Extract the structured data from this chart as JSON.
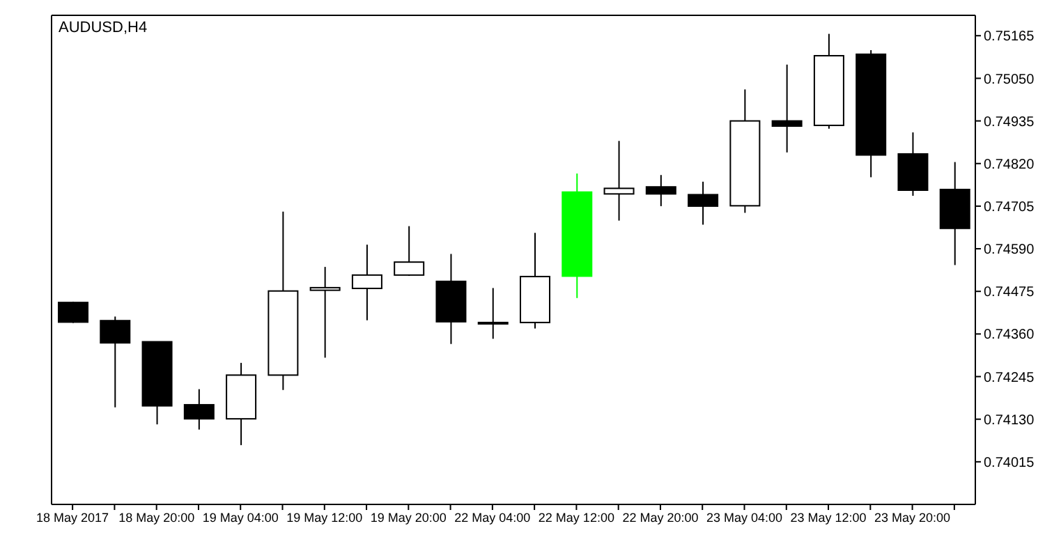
{
  "chart_data": {
    "type": "candlestick",
    "title": "AUDUSD,H4",
    "categories": [
      "18 May 2017",
      null,
      "18 May 20:00",
      null,
      "19 May 04:00",
      null,
      "19 May 12:00",
      null,
      "19 May 20:00",
      null,
      "22 May 04:00",
      null,
      "22 May 12:00",
      null,
      "22 May 20:00",
      null,
      "23 May 04:00",
      null,
      "23 May 12:00",
      null,
      "23 May 20:00",
      null
    ],
    "ohlc": [
      [
        0.74445,
        0.74447,
        0.7439,
        0.74392
      ],
      [
        0.74396,
        0.74407,
        0.74162,
        0.74336
      ],
      [
        0.74339,
        0.74339,
        0.74116,
        0.74166
      ],
      [
        0.74169,
        0.74211,
        0.74102,
        0.74131
      ],
      [
        0.74131,
        0.74282,
        0.7406,
        0.74249
      ],
      [
        0.74249,
        0.7469,
        0.74209,
        0.74476
      ],
      [
        0.74478,
        0.74541,
        0.74296,
        0.74485
      ],
      [
        0.74483,
        0.74601,
        0.74397,
        0.74519
      ],
      [
        0.74519,
        0.74651,
        0.74517,
        0.74554
      ],
      [
        0.74502,
        0.74576,
        0.74333,
        0.74393
      ],
      [
        0.74391,
        0.74484,
        0.74347,
        0.74391
      ],
      [
        0.74391,
        0.74633,
        0.74375,
        0.74515
      ],
      [
        0.74516,
        0.74793,
        0.74457,
        0.74743
      ],
      [
        0.74738,
        0.74881,
        0.74666,
        0.74753
      ],
      [
        0.74757,
        0.74789,
        0.74705,
        0.74738
      ],
      [
        0.74736,
        0.74771,
        0.74655,
        0.74705
      ],
      [
        0.74706,
        0.7502,
        0.74687,
        0.74935
      ],
      [
        0.74935,
        0.75087,
        0.7485,
        0.74921
      ],
      [
        0.74923,
        0.7517,
        0.74914,
        0.75111
      ],
      [
        0.75115,
        0.75126,
        0.74783,
        0.74843
      ],
      [
        0.74846,
        0.74904,
        0.74733,
        0.74748
      ],
      [
        0.7475,
        0.74824,
        0.74546,
        0.74645
      ]
    ],
    "colors": [
      "#000000",
      "#000000",
      "#000000",
      "#000000",
      "#ffffff",
      "#ffffff",
      "#ffffff",
      "#ffffff",
      "#ffffff",
      "#000000",
      "#000000",
      "#ffffff",
      "#00ff00",
      "#ffffff",
      "#000000",
      "#000000",
      "#ffffff",
      "#000000",
      "#ffffff",
      "#000000",
      "#000000",
      "#000000"
    ],
    "ylim": [
      0.739,
      0.7522
    ],
    "yticks": [
      0.74015,
      {
        "value": 0.7413,
        "label": "0.74130"
      },
      0.74245,
      {
        "value": 0.7436,
        "label": "0.74360"
      },
      0.74475,
      {
        "value": 0.7459,
        "label": "0.74590"
      },
      0.74705,
      {
        "value": 0.7482,
        "label": "0.74820"
      },
      0.74935,
      {
        "value": 0.7505,
        "label": "0.75050"
      },
      0.75165
    ]
  }
}
